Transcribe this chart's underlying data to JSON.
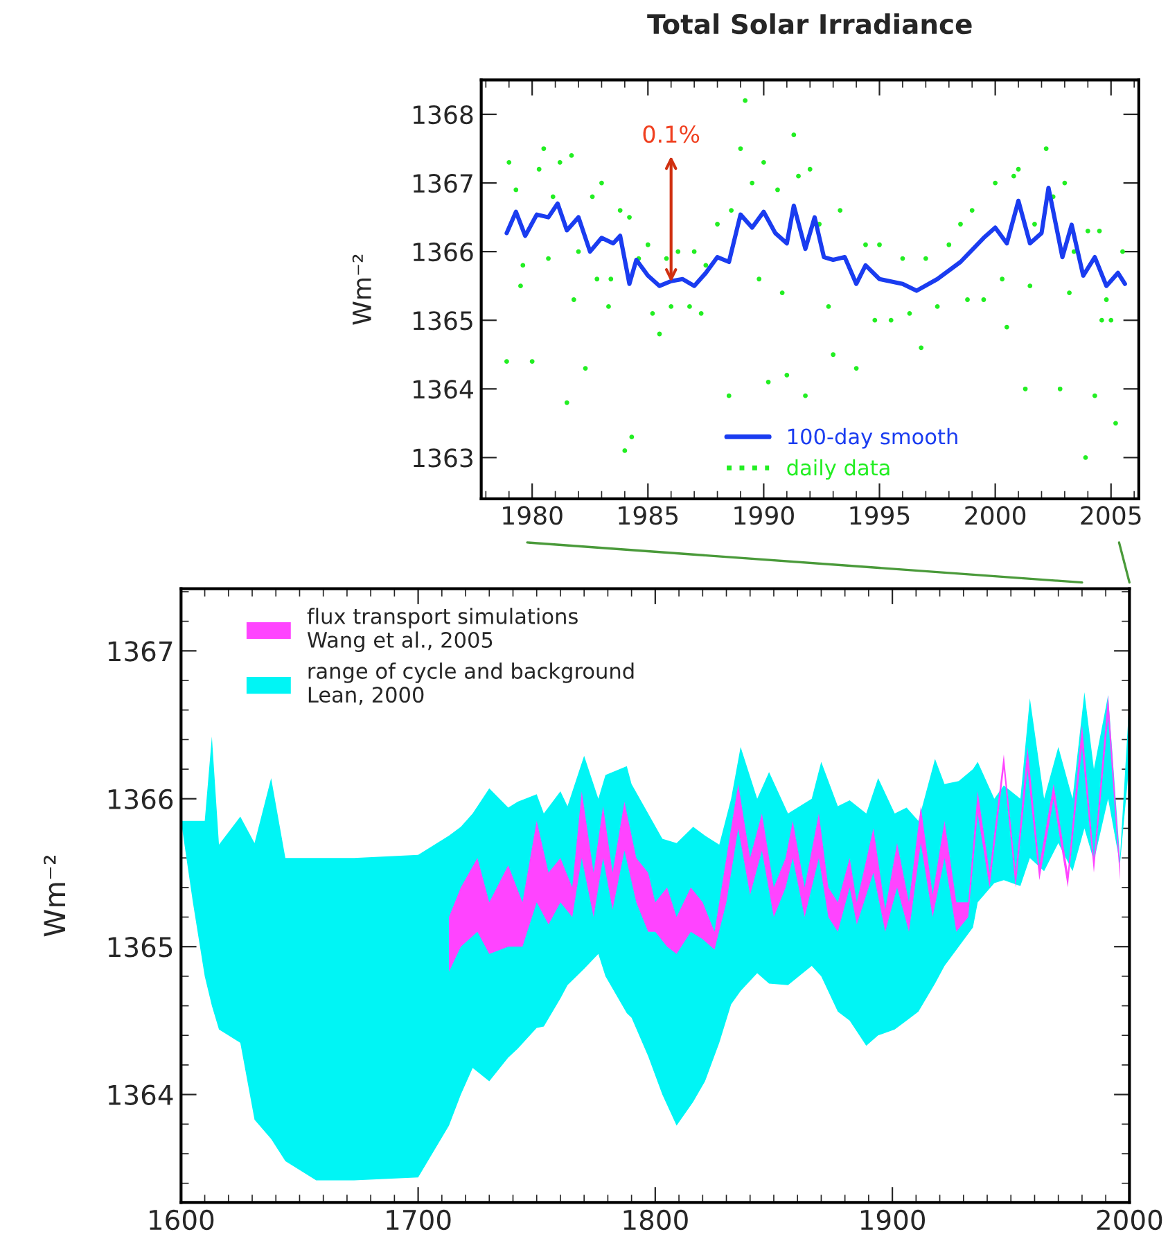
{
  "chart_data": [
    {
      "type": "scatter",
      "title": "Total Solar Irradiance",
      "ylabel": "Wm⁻²",
      "xlim": [
        1977.8,
        2006.2
      ],
      "ylim": [
        1362.4,
        1368.5
      ],
      "xticks": [
        1980,
        1985,
        1990,
        1995,
        2000,
        2005
      ],
      "yticks": [
        1363,
        1364,
        1365,
        1366,
        1367,
        1368
      ],
      "legend": "bottom",
      "grid": false,
      "annotations": [
        {
          "text": "0.1%",
          "x": 1986,
          "y": 1365.5
        }
      ],
      "series": [
        {
          "name": "daily data",
          "type": "scatter",
          "color": "#22ee22",
          "x": [
            1978.9,
            1979.0,
            1979.3,
            1979.6,
            1980.0,
            1980.3,
            1980.5,
            1980.9,
            1981.2,
            1981.5,
            1981.7,
            1982.0,
            1982.3,
            1982.6,
            1983.0,
            1983.4,
            1983.8,
            1984.0,
            1984.2,
            1984.3,
            1984.6,
            1985.0,
            1985.5,
            1985.8,
            1986.3,
            1986.8,
            1987.0,
            1987.5,
            1988.0,
            1988.5,
            1988.6,
            1989.0,
            1989.2,
            1989.5,
            1990.0,
            1990.2,
            1990.6,
            1991.0,
            1991.3,
            1991.5,
            1991.8,
            1992.0,
            1992.4,
            1993.0,
            1993.3,
            1994.0,
            1994.4,
            1995.0,
            1995.5,
            1996.0,
            1996.8,
            1997.0,
            1997.5,
            1998.0,
            1998.5,
            1999.0,
            1999.5,
            2000.0,
            2000.5,
            2000.8,
            2001.0,
            2001.3,
            2001.7,
            2002.2,
            2002.5,
            2002.8,
            2003.0,
            2003.4,
            2003.9,
            2004.0,
            2004.3,
            2004.5,
            2004.8,
            2005.2,
            2005.5,
            1979.5,
            1980.7,
            1981.8,
            1982.8,
            1983.3,
            1985.2,
            1986.0,
            1987.3,
            1989.8,
            1990.8,
            1992.8,
            1994.8,
            1996.3,
            1998.8,
            2000.3,
            2001.5,
            2003.2,
            2004.6,
            2005.0
          ],
          "values": [
            1364.4,
            1367.3,
            1366.9,
            1365.8,
            1364.4,
            1367.2,
            1367.5,
            1366.8,
            1367.3,
            1363.8,
            1367.4,
            1366.0,
            1364.3,
            1366.8,
            1367.0,
            1365.6,
            1366.6,
            1363.1,
            1366.5,
            1363.3,
            1365.9,
            1366.1,
            1364.8,
            1365.9,
            1366.0,
            1365.2,
            1366.0,
            1365.8,
            1366.4,
            1363.9,
            1366.6,
            1367.5,
            1368.2,
            1367.0,
            1367.3,
            1364.1,
            1366.9,
            1364.2,
            1367.7,
            1367.1,
            1363.9,
            1367.2,
            1366.4,
            1364.5,
            1366.6,
            1364.3,
            1366.1,
            1366.1,
            1365.0,
            1365.9,
            1364.6,
            1365.9,
            1365.2,
            1366.1,
            1366.4,
            1366.6,
            1365.3,
            1367.0,
            1364.9,
            1367.1,
            1367.2,
            1364.0,
            1366.4,
            1367.5,
            1366.8,
            1364.0,
            1367.0,
            1366.0,
            1363.0,
            1366.3,
            1363.9,
            1366.3,
            1365.3,
            1363.5,
            1366.0,
            1365.5,
            1365.9,
            1365.3,
            1365.6,
            1365.2,
            1365.1,
            1365.2,
            1365.1,
            1365.6,
            1365.4,
            1365.2,
            1365.0,
            1365.1,
            1365.3,
            1365.6,
            1365.5,
            1365.4,
            1365.0,
            1365.0
          ]
        },
        {
          "name": "100-day smooth",
          "type": "line",
          "color": "#1a3cf0",
          "line_style": "solid",
          "x": [
            1978.9,
            1979.3,
            1979.7,
            1980.2,
            1980.7,
            1981.1,
            1981.5,
            1982.0,
            1982.5,
            1983.0,
            1983.5,
            1983.8,
            1984.2,
            1984.5,
            1985.0,
            1985.5,
            1986.0,
            1986.5,
            1987.0,
            1987.5,
            1988.0,
            1988.5,
            1989.0,
            1989.5,
            1990.0,
            1990.5,
            1991.0,
            1991.3,
            1991.8,
            1992.2,
            1992.6,
            1993.0,
            1993.5,
            1994.0,
            1994.4,
            1995.0,
            1996.0,
            1996.6,
            1997.5,
            1998.5,
            1999.5,
            2000.0,
            2000.5,
            2001.0,
            2001.5,
            2002.0,
            2002.3,
            2002.9,
            2003.3,
            2003.8,
            2004.3,
            2004.8,
            2005.3,
            2005.6
          ],
          "values": [
            1366.27,
            1366.58,
            1366.23,
            1366.54,
            1366.5,
            1366.7,
            1366.31,
            1366.5,
            1366.0,
            1366.2,
            1366.12,
            1366.23,
            1365.53,
            1365.88,
            1365.65,
            1365.5,
            1365.57,
            1365.6,
            1365.5,
            1365.69,
            1365.92,
            1365.85,
            1366.54,
            1366.35,
            1366.58,
            1366.27,
            1366.12,
            1366.67,
            1366.04,
            1366.5,
            1365.92,
            1365.88,
            1365.92,
            1365.53,
            1365.8,
            1365.6,
            1365.53,
            1365.43,
            1365.6,
            1365.85,
            1366.2,
            1366.35,
            1366.12,
            1366.74,
            1366.12,
            1366.27,
            1366.93,
            1365.92,
            1366.39,
            1365.65,
            1365.92,
            1365.5,
            1365.69,
            1365.53
          ]
        }
      ]
    },
    {
      "type": "area",
      "ylabel": "Wm⁻²",
      "xlim": [
        1600,
        2000
      ],
      "ylim": [
        1363.27,
        1367.42
      ],
      "xticks": [
        1600,
        1700,
        1800,
        1900,
        2000
      ],
      "yticks": [
        1364,
        1365,
        1366,
        1367
      ],
      "legend": "top left",
      "grid": false,
      "series": [
        {
          "name": "range of cycle and background\nLean, 2000",
          "color": "#00f5f5",
          "values": [
            null,
            null,
            null,
            null,
            null,
            null,
            null,
            null,
            null,
            null,
            null,
            null,
            null,
            null,
            null,
            null,
            null,
            null,
            null,
            null,
            null,
            null,
            null,
            null,
            null,
            null,
            null,
            null,
            null,
            null,
            null,
            null,
            null,
            null,
            null,
            null,
            null,
            null,
            null,
            null,
            null,
            null,
            null,
            null,
            null,
            null,
            null,
            null,
            null,
            null,
            null,
            null,
            null,
            null,
            null,
            null,
            null,
            null,
            null,
            null,
            null,
            null,
            null,
            null
          ],
          "x": [
            1600,
            1605,
            1610,
            1613,
            1616,
            1625,
            1631,
            1638,
            1644,
            1657,
            1673,
            1700,
            1713,
            1718,
            1723,
            1730,
            1738,
            1742,
            1750,
            1753,
            1760,
            1763,
            1770,
            1776,
            1779,
            1788,
            1790,
            1797,
            1803,
            1809,
            1816,
            1821,
            1827,
            1832,
            1836,
            1843,
            1848,
            1856,
            1866,
            1870,
            1877,
            1882,
            1889,
            1894,
            1901,
            1906,
            1911,
            1918,
            1922,
            1928,
            1934,
            1936,
            1943,
            1947,
            1954,
            1958,
            1964,
            1970,
            1976,
            1981,
            1985,
            1991,
            1996,
            2000
          ],
          "upper": [
            1365.85,
            1365.85,
            1365.85,
            1366.42,
            1365.69,
            1365.88,
            1365.7,
            1366.14,
            1365.6,
            1365.6,
            1365.6,
            1365.62,
            1365.75,
            1365.81,
            1365.9,
            1366.07,
            1365.94,
            1365.98,
            1366.03,
            1365.9,
            1366.05,
            1365.95,
            1366.29,
            1366.0,
            1366.16,
            1366.22,
            1366.1,
            1365.9,
            1365.73,
            1365.7,
            1365.81,
            1365.75,
            1365.69,
            1366.0,
            1366.35,
            1366.0,
            1366.18,
            1365.9,
            1366.0,
            1366.25,
            1365.95,
            1365.99,
            1365.9,
            1366.14,
            1365.9,
            1365.94,
            1365.85,
            1366.27,
            1366.1,
            1366.12,
            1366.2,
            1366.25,
            1366.0,
            1366.09,
            1366.0,
            1366.68,
            1366.0,
            1366.35,
            1366.0,
            1366.72,
            1366.2,
            1366.7,
            1365.6,
            1366.68
          ],
          "lower": [
            1365.85,
            1365.3,
            1364.8,
            1364.6,
            1364.44,
            1364.35,
            1363.83,
            1363.7,
            1363.55,
            1363.42,
            1363.42,
            1363.44,
            1363.79,
            1364.0,
            1364.18,
            1364.09,
            1364.25,
            1364.31,
            1364.45,
            1364.46,
            1364.65,
            1364.74,
            1364.85,
            1364.95,
            1364.8,
            1364.55,
            1364.52,
            1364.26,
            1364.0,
            1363.79,
            1363.95,
            1364.09,
            1364.35,
            1364.61,
            1364.7,
            1364.82,
            1364.75,
            1364.74,
            1364.87,
            1364.8,
            1364.56,
            1364.5,
            1364.33,
            1364.4,
            1364.44,
            1364.5,
            1364.56,
            1364.75,
            1364.87,
            1365.0,
            1365.13,
            1365.3,
            1365.43,
            1365.45,
            1365.41,
            1365.6,
            1365.51,
            1365.7,
            1365.51,
            1365.8,
            1365.58,
            1366.0,
            1365.56,
            1366.25
          ]
        },
        {
          "name": "flux transport simulations\nWang et al., 2005",
          "color": "#ff44ff",
          "values": [
            null,
            null,
            null,
            null,
            null,
            null,
            null,
            null,
            null,
            null,
            null,
            null,
            null,
            null,
            null,
            null,
            null,
            null,
            null,
            null,
            null,
            null,
            null,
            null,
            null,
            null,
            null,
            null,
            null,
            null,
            null,
            null,
            null,
            null,
            null,
            null,
            null,
            null,
            null,
            null,
            null,
            null,
            null,
            null,
            null,
            null,
            null,
            null,
            null,
            null,
            null,
            null,
            null,
            null,
            null,
            null,
            null
          ],
          "x": [
            1713,
            1718,
            1725,
            1730,
            1738,
            1744,
            1750,
            1755,
            1760,
            1765,
            1769,
            1774,
            1778,
            1782,
            1787,
            1792,
            1797,
            1800,
            1805,
            1809,
            1815,
            1820,
            1825,
            1830,
            1835,
            1840,
            1845,
            1850,
            1855,
            1858,
            1863,
            1869,
            1873,
            1877,
            1882,
            1885,
            1892,
            1897,
            1902,
            1907,
            1912,
            1917,
            1922,
            1927,
            1932,
            1936,
            1941,
            1947,
            1952,
            1957,
            1962,
            1968,
            1974,
            1980,
            1985,
            1991,
            1996
          ],
          "upper": [
            1365.2,
            1365.4,
            1365.6,
            1365.3,
            1365.55,
            1365.3,
            1365.85,
            1365.5,
            1365.6,
            1365.4,
            1366.05,
            1365.5,
            1365.95,
            1365.5,
            1365.98,
            1365.6,
            1365.5,
            1365.3,
            1365.4,
            1365.2,
            1365.4,
            1365.3,
            1365.1,
            1365.6,
            1366.1,
            1365.6,
            1365.9,
            1365.4,
            1365.6,
            1365.85,
            1365.4,
            1365.9,
            1365.4,
            1365.3,
            1365.6,
            1365.3,
            1365.8,
            1365.25,
            1365.7,
            1365.3,
            1365.95,
            1365.35,
            1365.85,
            1365.3,
            1365.3,
            1366.05,
            1365.5,
            1366.3,
            1365.5,
            1366.35,
            1365.55,
            1366.1,
            1365.5,
            1366.5,
            1365.6,
            1366.7,
            1365.55
          ],
          "lower": [
            1364.83,
            1365.0,
            1365.1,
            1364.95,
            1365.0,
            1365.0,
            1365.3,
            1365.15,
            1365.3,
            1365.2,
            1365.6,
            1365.2,
            1365.6,
            1365.25,
            1365.65,
            1365.3,
            1365.1,
            1365.1,
            1365.0,
            1364.95,
            1365.1,
            1365.05,
            1364.98,
            1365.3,
            1365.8,
            1365.35,
            1365.65,
            1365.2,
            1365.4,
            1365.6,
            1365.2,
            1365.6,
            1365.2,
            1365.1,
            1365.4,
            1365.15,
            1365.5,
            1365.1,
            1365.4,
            1365.1,
            1365.7,
            1365.2,
            1365.6,
            1365.1,
            1365.2,
            1365.9,
            1365.4,
            1366.2,
            1365.4,
            1366.2,
            1365.45,
            1366.0,
            1365.4,
            1366.35,
            1365.5,
            1366.55,
            1365.45
          ]
        }
      ]
    }
  ]
}
